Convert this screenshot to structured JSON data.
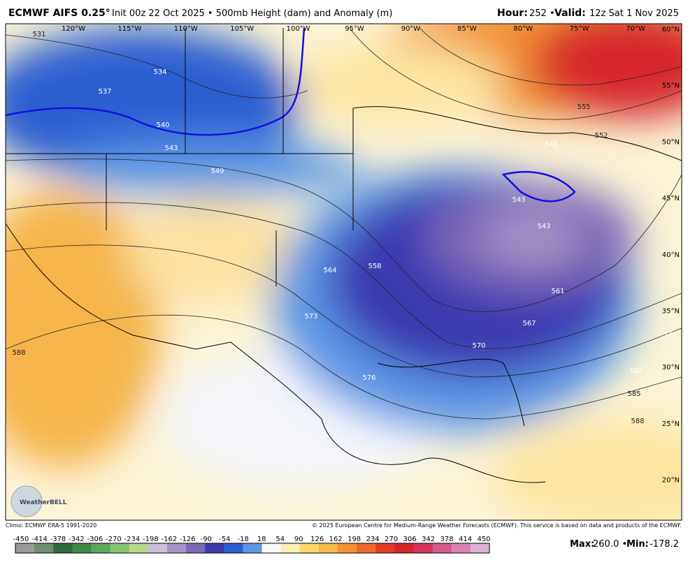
{
  "header": {
    "title": "ECMWF AIFS 0.25°",
    "subtitle": "Init 00z 22 Oct 2025 • 500mb Height (dam) and Anomaly (m)",
    "hour_label": "Hour:",
    "hour": "252 •",
    "valid_label": "Valid:",
    "valid": "12z Sat 1 Nov 2025"
  },
  "map": {
    "longitudes": [
      "120°W",
      "115°W",
      "110°W",
      "105°W",
      "100°W",
      "95°W",
      "90°W",
      "85°W",
      "80°W",
      "75°W",
      "70°W"
    ],
    "latitudes": [
      "60°N",
      "55°N",
      "50°N",
      "45°N",
      "40°N",
      "35°N",
      "30°N",
      "25°N",
      "20°N"
    ],
    "contour_labels": [
      "531",
      "534",
      "537",
      "540",
      "543",
      "546",
      "549",
      "552",
      "555",
      "558",
      "564",
      "561",
      "567",
      "570",
      "573",
      "576",
      "579",
      "582",
      "585",
      "588",
      "588",
      "543",
      "543"
    ],
    "logo": "WeatherBELL"
  },
  "footer": {
    "climo": "Climo: ECMWF ERA-5 1991-2020",
    "copyright": "© 2025 European Centre for Medium-Range Weather Forecasts (ECMWF). This service is based on data and products of the ECMWF.",
    "max_label": "Max:",
    "max": "260.0 •",
    "min_label": "Min:",
    "min": "-178.2"
  },
  "colorbar": {
    "ticks": [
      -450,
      -414,
      -378,
      -342,
      -306,
      -270,
      -234,
      -198,
      -162,
      -126,
      -90,
      -54,
      -18,
      18,
      54,
      90,
      126,
      162,
      198,
      234,
      270,
      306,
      342,
      378,
      414,
      450
    ],
    "colors": [
      "#9a9a9a",
      "#6f8f6f",
      "#2f6b3a",
      "#3f8a48",
      "#5aa85a",
      "#86c46f",
      "#b5d98a",
      "#c8c0d8",
      "#a994c8",
      "#7d68b8",
      "#3e3ab0",
      "#2c5fd0",
      "#5a97e6",
      "#f6f8fc",
      "#fbf0b0",
      "#f8d86a",
      "#f7b94a",
      "#f39232",
      "#ec6a2a",
      "#e03a22",
      "#d7262a",
      "#d4345a",
      "#d45a8a",
      "#d883b2",
      "#d9b0d0"
    ]
  }
}
